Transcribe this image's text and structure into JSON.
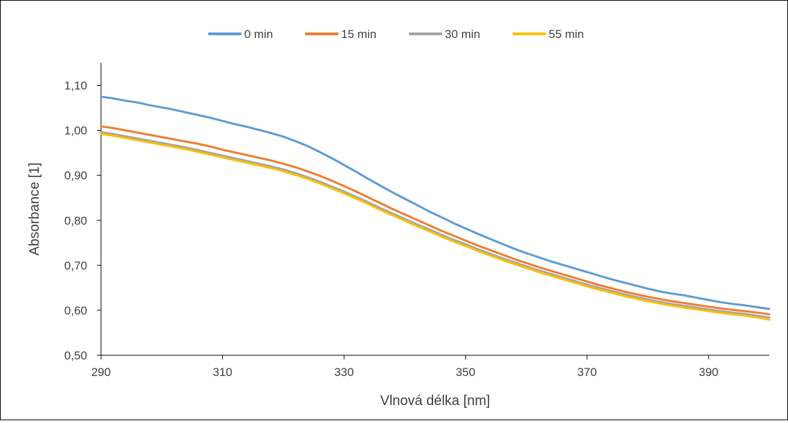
{
  "chart_data": {
    "type": "line",
    "title": "",
    "xlabel": "Vlnová délka [nm]",
    "ylabel": "Absorbance [1]",
    "xlim": [
      290,
      400
    ],
    "ylim": [
      0.5,
      1.15
    ],
    "x_ticks": [
      290,
      310,
      330,
      350,
      370,
      390
    ],
    "x_tick_labels": [
      "290",
      "310",
      "330",
      "350",
      "370",
      "390"
    ],
    "y_ticks": [
      0.5,
      0.6,
      0.7,
      0.8,
      0.9,
      1.0,
      1.1
    ],
    "y_tick_labels": [
      "0,50",
      "0,60",
      "0,70",
      "0,80",
      "0,90",
      "1,00",
      "1,10"
    ],
    "grid": false,
    "legend_position": "top",
    "x": [
      290,
      292,
      294,
      296,
      298,
      300,
      302,
      304,
      306,
      308,
      310,
      312,
      314,
      316,
      318,
      320,
      322,
      324,
      326,
      328,
      330,
      332,
      334,
      336,
      338,
      340,
      342,
      344,
      346,
      348,
      350,
      352,
      354,
      356,
      358,
      360,
      362,
      364,
      366,
      368,
      370,
      372,
      374,
      376,
      378,
      380,
      382,
      384,
      386,
      388,
      390,
      392,
      394,
      396,
      398,
      400
    ],
    "series": [
      {
        "name": "0 min",
        "color": "#5B9BD5",
        "values": [
          1.075,
          1.071,
          1.066,
          1.062,
          1.056,
          1.051,
          1.046,
          1.04,
          1.034,
          1.028,
          1.021,
          1.014,
          1.008,
          1.001,
          0.994,
          0.986,
          0.976,
          0.965,
          0.952,
          0.938,
          0.923,
          0.908,
          0.892,
          0.877,
          0.862,
          0.848,
          0.834,
          0.82,
          0.807,
          0.794,
          0.782,
          0.77,
          0.759,
          0.748,
          0.737,
          0.727,
          0.718,
          0.709,
          0.701,
          0.693,
          0.685,
          0.677,
          0.669,
          0.662,
          0.655,
          0.648,
          0.642,
          0.637,
          0.633,
          0.628,
          0.623,
          0.618,
          0.614,
          0.611,
          0.607,
          0.603
        ]
      },
      {
        "name": "15 min",
        "color": "#ED7D31",
        "values": [
          1.009,
          1.005,
          1.0,
          0.995,
          0.99,
          0.985,
          0.98,
          0.975,
          0.97,
          0.964,
          0.957,
          0.951,
          0.945,
          0.939,
          0.933,
          0.926,
          0.918,
          0.909,
          0.899,
          0.888,
          0.876,
          0.864,
          0.851,
          0.838,
          0.825,
          0.813,
          0.801,
          0.789,
          0.777,
          0.766,
          0.755,
          0.744,
          0.734,
          0.724,
          0.714,
          0.705,
          0.696,
          0.688,
          0.68,
          0.672,
          0.664,
          0.656,
          0.649,
          0.642,
          0.636,
          0.63,
          0.625,
          0.62,
          0.616,
          0.612,
          0.608,
          0.604,
          0.601,
          0.598,
          0.595,
          0.591
        ]
      },
      {
        "name": "30 min",
        "color": "#A5A5A5",
        "values": [
          0.996,
          0.992,
          0.987,
          0.982,
          0.977,
          0.972,
          0.967,
          0.962,
          0.956,
          0.95,
          0.944,
          0.938,
          0.932,
          0.926,
          0.92,
          0.913,
          0.905,
          0.896,
          0.886,
          0.875,
          0.864,
          0.852,
          0.84,
          0.827,
          0.815,
          0.803,
          0.791,
          0.78,
          0.768,
          0.757,
          0.747,
          0.736,
          0.726,
          0.716,
          0.707,
          0.698,
          0.689,
          0.681,
          0.673,
          0.665,
          0.657,
          0.65,
          0.643,
          0.636,
          0.63,
          0.624,
          0.619,
          0.614,
          0.61,
          0.606,
          0.602,
          0.598,
          0.595,
          0.592,
          0.588,
          0.584
        ]
      },
      {
        "name": "55 min",
        "color": "#FFC000",
        "values": [
          0.992,
          0.988,
          0.983,
          0.978,
          0.973,
          0.968,
          0.963,
          0.958,
          0.952,
          0.946,
          0.94,
          0.934,
          0.928,
          0.922,
          0.916,
          0.909,
          0.901,
          0.892,
          0.882,
          0.871,
          0.86,
          0.848,
          0.836,
          0.823,
          0.811,
          0.799,
          0.787,
          0.776,
          0.764,
          0.753,
          0.743,
          0.732,
          0.722,
          0.712,
          0.703,
          0.694,
          0.685,
          0.677,
          0.669,
          0.661,
          0.653,
          0.646,
          0.639,
          0.632,
          0.626,
          0.62,
          0.615,
          0.61,
          0.606,
          0.602,
          0.598,
          0.594,
          0.591,
          0.588,
          0.584,
          0.579
        ]
      }
    ]
  }
}
